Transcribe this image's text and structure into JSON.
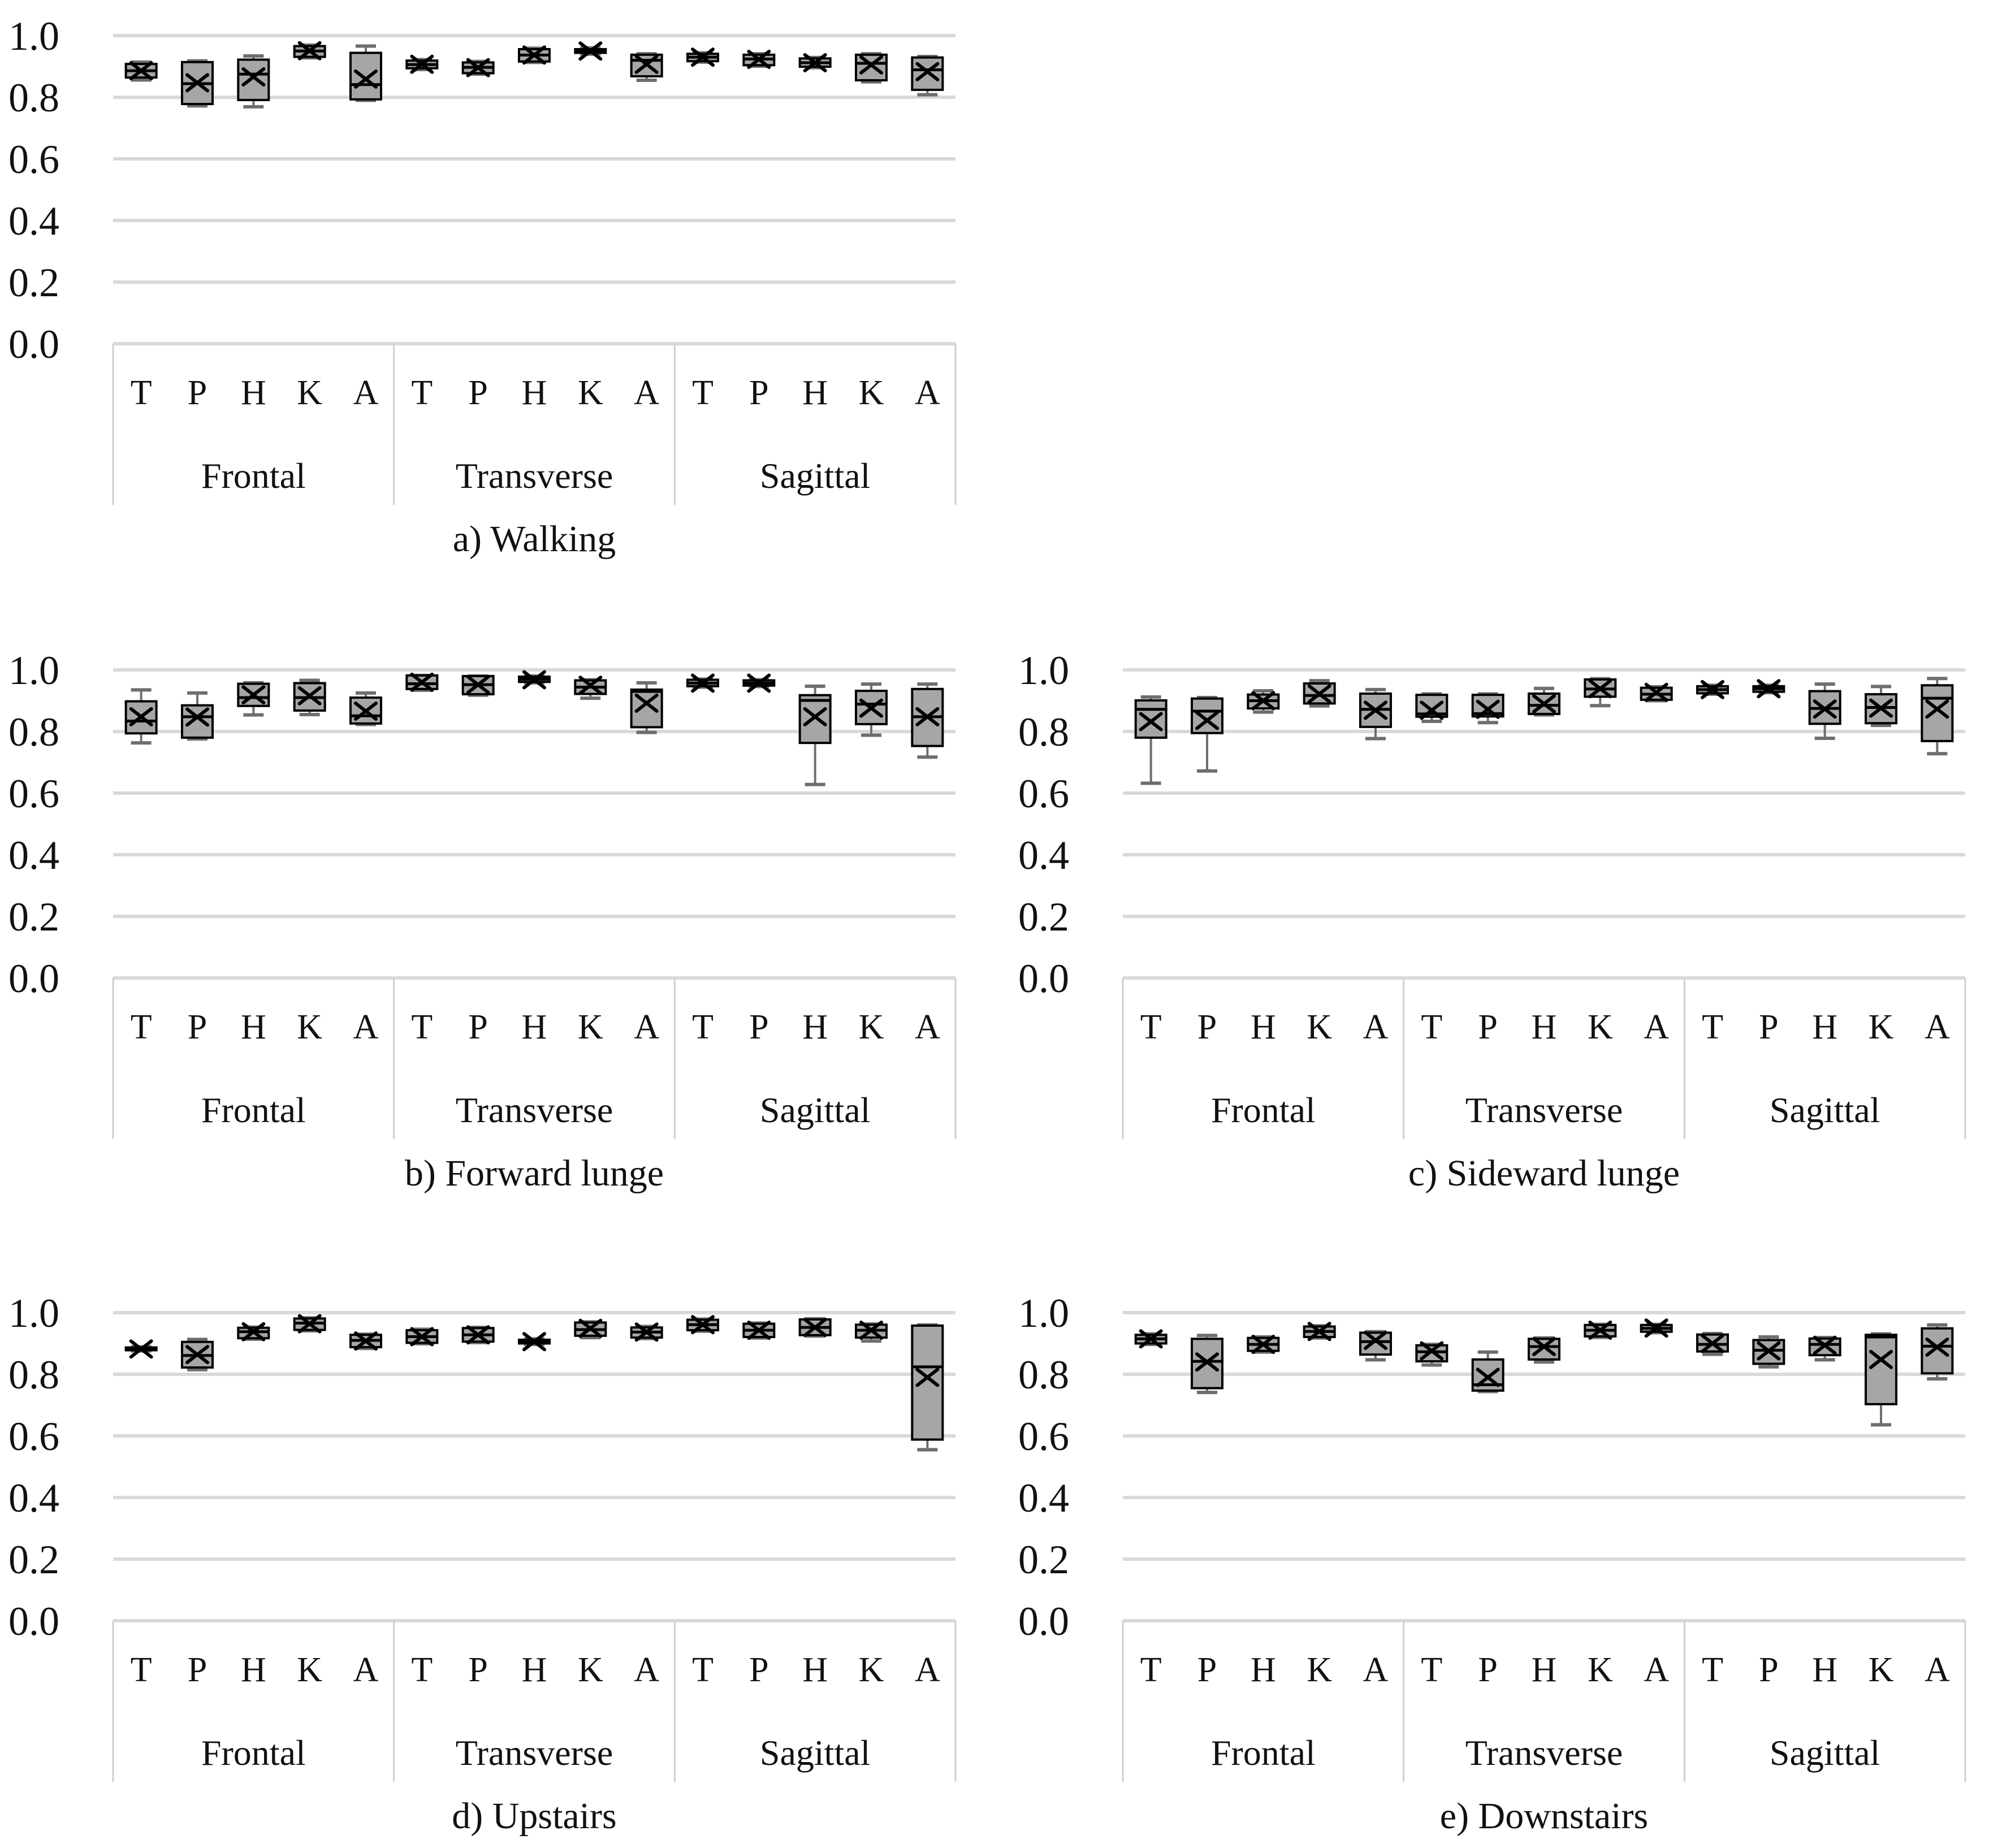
{
  "page": {
    "background": "#ffffff"
  },
  "style": {
    "box_fill": "#a6a6a6",
    "box_border": "#000000",
    "median_color": "#000000",
    "mean_marker": "x-cross",
    "mean_color": "#000000",
    "whisker_color": "#6e6e6e",
    "gridline_color": "#d9d9d9",
    "band_border_color": "#cfcfcf",
    "text_color": "#111111"
  },
  "axis": {
    "y_ticks": [
      "1.0",
      "0.8",
      "0.6",
      "0.4",
      "0.2",
      "0.0"
    ],
    "ylim": [
      0.0,
      1.0
    ],
    "grid_step": 0.2,
    "groups": [
      "Frontal",
      "Transverse",
      "Sagittal"
    ],
    "categories": [
      "T",
      "P",
      "H",
      "K",
      "A"
    ]
  },
  "chart_data": [
    {
      "id": "a",
      "type": "box",
      "caption": "a) Walking",
      "box_columns": [
        "whisker_low",
        "q1",
        "median",
        "q3",
        "whisker_high",
        "mean"
      ],
      "boxes": [
        [
          0.856,
          0.864,
          0.886,
          0.908,
          0.914,
          0.886
        ],
        [
          0.772,
          0.778,
          0.844,
          0.914,
          0.918,
          0.847
        ],
        [
          0.769,
          0.791,
          0.875,
          0.922,
          0.934,
          0.866
        ],
        [
          0.928,
          0.931,
          0.95,
          0.966,
          0.969,
          0.951
        ],
        [
          0.79,
          0.793,
          0.841,
          0.944,
          0.966,
          0.859
        ],
        [
          0.89,
          0.894,
          0.906,
          0.919,
          0.922,
          0.907
        ],
        [
          0.875,
          0.878,
          0.897,
          0.913,
          0.916,
          0.896
        ],
        [
          0.913,
          0.916,
          0.937,
          0.956,
          0.959,
          0.937
        ],
        [
          0.94,
          0.944,
          0.95,
          0.956,
          0.96,
          0.95
        ],
        [
          0.855,
          0.868,
          0.92,
          0.938,
          0.941,
          0.907
        ],
        [
          0.914,
          0.917,
          0.93,
          0.941,
          0.944,
          0.93
        ],
        [
          0.901,
          0.904,
          0.924,
          0.938,
          0.941,
          0.923
        ],
        [
          0.896,
          0.899,
          0.912,
          0.926,
          0.929,
          0.912
        ],
        [
          0.85,
          0.855,
          0.91,
          0.938,
          0.941,
          0.905
        ],
        [
          0.808,
          0.824,
          0.889,
          0.929,
          0.932,
          0.883
        ]
      ]
    },
    {
      "id": "b",
      "type": "box",
      "caption": "b) Forward lunge",
      "box_columns": [
        "whisker_low",
        "q1",
        "median",
        "q3",
        "whisker_high",
        "mean"
      ],
      "boxes": [
        [
          0.763,
          0.794,
          0.834,
          0.898,
          0.935,
          0.848
        ],
        [
          0.776,
          0.78,
          0.848,
          0.885,
          0.925,
          0.847
        ],
        [
          0.854,
          0.883,
          0.91,
          0.955,
          0.958,
          0.919
        ],
        [
          0.855,
          0.868,
          0.91,
          0.957,
          0.966,
          0.916
        ],
        [
          0.823,
          0.826,
          0.851,
          0.91,
          0.925,
          0.866
        ],
        [
          0.934,
          0.938,
          0.955,
          0.982,
          0.982,
          0.96
        ],
        [
          0.918,
          0.921,
          0.952,
          0.98,
          0.98,
          0.952
        ],
        [
          0.958,
          0.961,
          0.97,
          0.978,
          0.98,
          0.968
        ],
        [
          0.908,
          0.922,
          0.944,
          0.966,
          0.968,
          0.95
        ],
        [
          0.797,
          0.814,
          0.93,
          0.936,
          0.958,
          0.892
        ],
        [
          0.944,
          0.947,
          0.957,
          0.968,
          0.97,
          0.957
        ],
        [
          0.946,
          0.949,
          0.957,
          0.966,
          0.968,
          0.957
        ],
        [
          0.628,
          0.763,
          0.901,
          0.918,
          0.947,
          0.848
        ],
        [
          0.788,
          0.824,
          0.889,
          0.932,
          0.954,
          0.876
        ],
        [
          0.717,
          0.753,
          0.848,
          0.938,
          0.954,
          0.848
        ]
      ]
    },
    {
      "id": "c",
      "type": "box",
      "caption": "c) Sideward lunge",
      "box_columns": [
        "whisker_low",
        "q1",
        "median",
        "q3",
        "whisker_high",
        "mean"
      ],
      "boxes": [
        [
          0.632,
          0.78,
          0.872,
          0.901,
          0.912,
          0.832
        ],
        [
          0.672,
          0.795,
          0.866,
          0.907,
          0.91,
          0.836
        ],
        [
          0.863,
          0.875,
          0.9,
          0.92,
          0.932,
          0.9
        ],
        [
          0.883,
          0.891,
          0.917,
          0.956,
          0.965,
          0.922
        ],
        [
          0.777,
          0.815,
          0.872,
          0.923,
          0.936,
          0.869
        ],
        [
          0.833,
          0.848,
          0.857,
          0.919,
          0.922,
          0.869
        ],
        [
          0.829,
          0.849,
          0.858,
          0.919,
          0.922,
          0.872
        ],
        [
          0.854,
          0.857,
          0.885,
          0.923,
          0.94,
          0.89
        ],
        [
          0.884,
          0.913,
          0.938,
          0.969,
          0.971,
          0.939
        ],
        [
          0.9,
          0.903,
          0.921,
          0.942,
          0.945,
          0.927
        ],
        [
          0.921,
          0.924,
          0.936,
          0.947,
          0.95,
          0.936
        ],
        [
          0.926,
          0.929,
          0.939,
          0.947,
          0.95,
          0.939
        ],
        [
          0.778,
          0.825,
          0.875,
          0.931,
          0.954,
          0.873
        ],
        [
          0.82,
          0.827,
          0.878,
          0.921,
          0.946,
          0.876
        ],
        [
          0.728,
          0.769,
          0.908,
          0.95,
          0.972,
          0.873
        ]
      ]
    },
    {
      "id": "d",
      "type": "box",
      "caption": "d) Upstairs",
      "box_columns": [
        "whisker_low",
        "q1",
        "median",
        "q3",
        "whisker_high",
        "mean"
      ],
      "boxes": [
        [
          0.876,
          0.878,
          0.882,
          0.887,
          0.889,
          0.882
        ],
        [
          0.815,
          0.822,
          0.861,
          0.905,
          0.913,
          0.864
        ],
        [
          0.914,
          0.917,
          0.938,
          0.951,
          0.953,
          0.938
        ],
        [
          0.941,
          0.944,
          0.966,
          0.981,
          0.983,
          0.964
        ],
        [
          0.884,
          0.888,
          0.91,
          0.928,
          0.93,
          0.908
        ],
        [
          0.899,
          0.902,
          0.922,
          0.943,
          0.946,
          0.922
        ],
        [
          0.903,
          0.906,
          0.928,
          0.95,
          0.952,
          0.928
        ],
        [
          0.897,
          0.9,
          0.906,
          0.912,
          0.915,
          0.906
        ],
        [
          0.919,
          0.925,
          0.945,
          0.968,
          0.97,
          0.949
        ],
        [
          0.916,
          0.919,
          0.937,
          0.952,
          0.955,
          0.937
        ],
        [
          0.94,
          0.943,
          0.961,
          0.977,
          0.979,
          0.961
        ],
        [
          0.918,
          0.921,
          0.943,
          0.964,
          0.966,
          0.943
        ],
        [
          0.924,
          0.927,
          0.952,
          0.978,
          0.98,
          0.952
        ],
        [
          0.908,
          0.919,
          0.943,
          0.961,
          0.963,
          0.943
        ],
        [
          0.555,
          0.588,
          0.824,
          0.958,
          0.96,
          0.79
        ]
      ]
    },
    {
      "id": "e",
      "type": "box",
      "caption": "e) Downstairs",
      "box_columns": [
        "whisker_low",
        "q1",
        "median",
        "q3",
        "whisker_high",
        "mean"
      ],
      "boxes": [
        [
          0.897,
          0.9,
          0.915,
          0.928,
          0.931,
          0.915
        ],
        [
          0.741,
          0.755,
          0.842,
          0.915,
          0.926,
          0.84
        ],
        [
          0.872,
          0.876,
          0.897,
          0.918,
          0.921,
          0.897
        ],
        [
          0.918,
          0.921,
          0.939,
          0.955,
          0.957,
          0.939
        ],
        [
          0.847,
          0.864,
          0.906,
          0.935,
          0.938,
          0.91
        ],
        [
          0.83,
          0.842,
          0.873,
          0.894,
          0.897,
          0.876
        ],
        [
          0.744,
          0.747,
          0.766,
          0.848,
          0.872,
          0.79
        ],
        [
          0.84,
          0.848,
          0.89,
          0.915,
          0.918,
          0.89
        ],
        [
          0.92,
          0.923,
          0.943,
          0.96,
          0.962,
          0.943
        ],
        [
          0.935,
          0.938,
          0.949,
          0.96,
          0.962,
          0.95
        ],
        [
          0.865,
          0.874,
          0.897,
          0.929,
          0.932,
          0.9
        ],
        [
          0.824,
          0.834,
          0.878,
          0.911,
          0.921,
          0.876
        ],
        [
          0.847,
          0.862,
          0.897,
          0.916,
          0.919,
          0.894
        ],
        [
          0.636,
          0.703,
          0.921,
          0.928,
          0.931,
          0.848
        ],
        [
          0.785,
          0.803,
          0.891,
          0.949,
          0.96,
          0.888
        ]
      ]
    }
  ]
}
